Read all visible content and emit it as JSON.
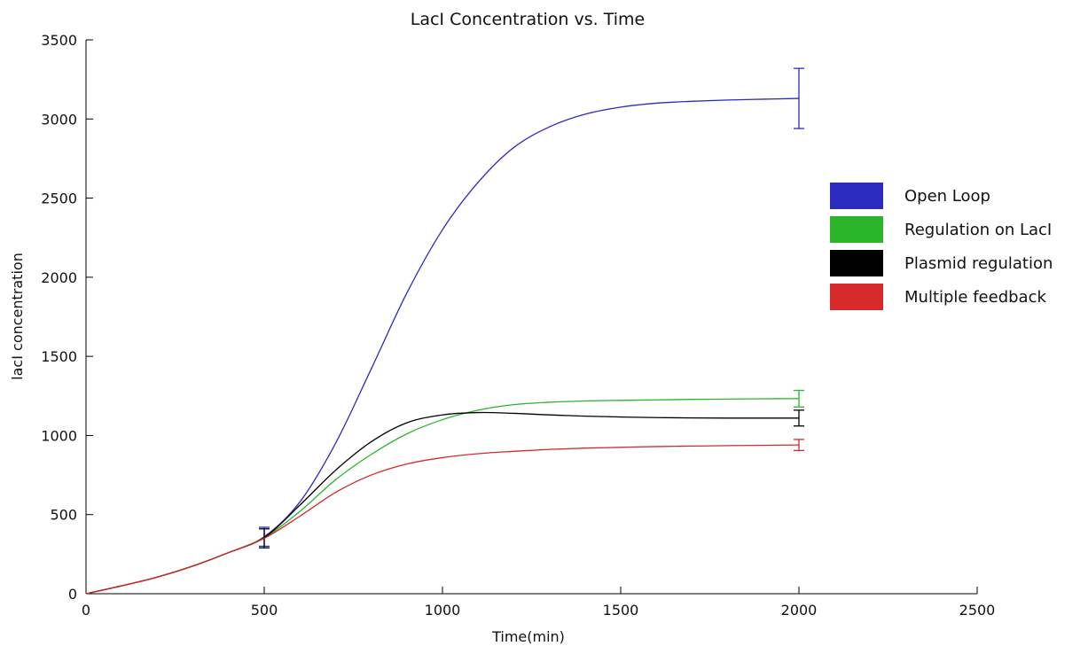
{
  "chart_data": {
    "type": "line",
    "title": "LacI Concentration vs. Time",
    "xlabel": "Time(min)",
    "ylabel": "lacI concentration",
    "xlim": [
      0,
      2500
    ],
    "ylim": [
      0,
      3500
    ],
    "xticks": [
      0,
      500,
      1000,
      1500,
      2000,
      2500
    ],
    "yticks": [
      0,
      500,
      1000,
      1500,
      2000,
      2500,
      3000,
      3500
    ],
    "grid": false,
    "legend_position": "right",
    "series": [
      {
        "name": "Open Loop",
        "color": "#2b2bbf",
        "x": [
          0,
          100,
          200,
          300,
          400,
          500,
          600,
          700,
          800,
          900,
          1000,
          1100,
          1200,
          1300,
          1400,
          1500,
          1600,
          1700,
          1800,
          1900,
          2000
        ],
        "y": [
          0,
          50,
          105,
          175,
          260,
          360,
          580,
          950,
          1420,
          1900,
          2300,
          2600,
          2820,
          2950,
          3030,
          3075,
          3100,
          3112,
          3120,
          3125,
          3130
        ],
        "error_bars": [
          {
            "x": 500,
            "y": 360,
            "low": 300,
            "high": 420
          },
          {
            "x": 2000,
            "y": 3130,
            "low": 2940,
            "high": 3320
          }
        ]
      },
      {
        "name": "Regulation on LacI",
        "color": "#2ab52a",
        "x": [
          0,
          100,
          200,
          300,
          400,
          500,
          600,
          700,
          800,
          900,
          1000,
          1100,
          1200,
          1300,
          1400,
          1500,
          1600,
          1700,
          1800,
          1900,
          2000
        ],
        "y": [
          0,
          50,
          105,
          175,
          260,
          355,
          520,
          720,
          880,
          1010,
          1100,
          1160,
          1195,
          1210,
          1218,
          1222,
          1225,
          1228,
          1230,
          1232,
          1233
        ],
        "error_bars": [
          {
            "x": 2000,
            "y": 1233,
            "low": 1180,
            "high": 1285
          }
        ]
      },
      {
        "name": "Plasmid regulation",
        "color": "#000000",
        "x": [
          0,
          100,
          200,
          300,
          400,
          500,
          600,
          700,
          800,
          900,
          1000,
          1100,
          1200,
          1300,
          1400,
          1500,
          1600,
          1700,
          1800,
          1900,
          2000
        ],
        "y": [
          0,
          50,
          105,
          175,
          260,
          355,
          560,
          780,
          960,
          1080,
          1130,
          1145,
          1140,
          1130,
          1122,
          1117,
          1113,
          1111,
          1110,
          1110,
          1110
        ],
        "error_bars": [
          {
            "x": 500,
            "y": 355,
            "low": 290,
            "high": 410
          },
          {
            "x": 2000,
            "y": 1110,
            "low": 1060,
            "high": 1160
          }
        ]
      },
      {
        "name": "Multiple feedback",
        "color": "#d42a2a",
        "x": [
          0,
          100,
          200,
          300,
          400,
          500,
          600,
          700,
          800,
          900,
          1000,
          1100,
          1200,
          1300,
          1400,
          1500,
          1600,
          1700,
          1800,
          1900,
          2000
        ],
        "y": [
          0,
          50,
          105,
          175,
          260,
          350,
          490,
          640,
          750,
          820,
          860,
          885,
          900,
          912,
          920,
          925,
          930,
          933,
          936,
          938,
          940
        ],
        "error_bars": [
          {
            "x": 2000,
            "y": 940,
            "low": 905,
            "high": 975
          }
        ]
      }
    ]
  }
}
